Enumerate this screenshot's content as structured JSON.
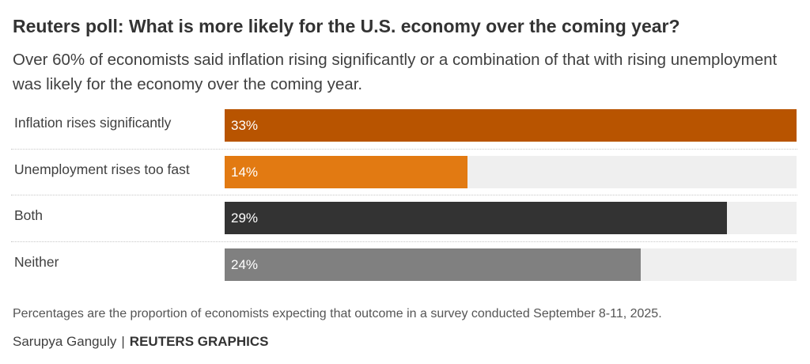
{
  "title": "Reuters poll: What is more likely for the U.S. economy over the coming year?",
  "subtitle": "Over 60% of economists said inflation rising significantly or a combination of that with rising unemployment was likely for the economy over the coming year.",
  "footnote": "Percentages are the proportion of economists expecting that outcome in a survey conducted September 8-11, 2025.",
  "credit": {
    "author": "Sarupya Ganguly",
    "separator": "|",
    "brand": "REUTERS GRAPHICS"
  },
  "colors": {
    "track": "#efefef",
    "bars": [
      "#b85400",
      "#e27a12",
      "#333333",
      "#808080"
    ]
  },
  "chart_data": {
    "type": "bar",
    "orientation": "horizontal",
    "categories": [
      "Inflation rises significantly",
      "Unemployment rises too fast",
      "Both",
      "Neither"
    ],
    "values": [
      33,
      14,
      29,
      24
    ],
    "value_labels": [
      "33%",
      "14%",
      "29%",
      "24%"
    ],
    "xlim": [
      0,
      33
    ],
    "grid": false,
    "legend": "none"
  }
}
